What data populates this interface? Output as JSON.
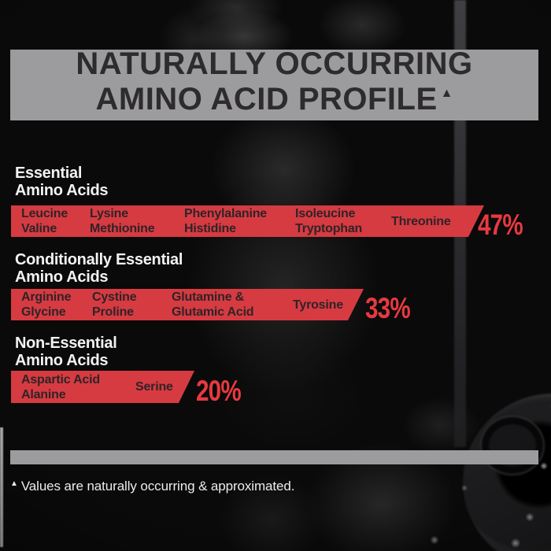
{
  "header": {
    "line1": "NATURALLY OCCURRING",
    "line2": "AMINO ACID PROFILE",
    "footnote_marker": "▲"
  },
  "sections": [
    {
      "label_line1": "Essential",
      "label_line2": "Amino Acids",
      "percent": "47%",
      "columns": [
        [
          "Leucine",
          "Valine"
        ],
        [
          "Lysine",
          "Methionine"
        ],
        [
          "Phenylalanine",
          "Histidine"
        ],
        [
          "Isoleucine",
          "Tryptophan"
        ],
        [
          "Threonine"
        ]
      ]
    },
    {
      "label_line1": "Conditionally Essential",
      "label_line2": "Amino Acids",
      "percent": "33%",
      "columns": [
        [
          "Arginine",
          "Glycine"
        ],
        [
          "Cystine",
          "Proline"
        ],
        [
          "Glutamine &",
          "Glutamic Acid"
        ],
        [
          "Tyrosine"
        ]
      ]
    },
    {
      "label_line1": "Non-Essential",
      "label_line2": "Amino Acids",
      "percent": "20%",
      "columns": [
        [
          "Aspartic Acid",
          "Alanine"
        ],
        [
          "Serine"
        ]
      ]
    }
  ],
  "footnote": {
    "marker": "▲",
    "text": "Values are naturally occurring & approximated."
  },
  "colors": {
    "bar_red": "#d63b41",
    "percent_red": "#e8393f",
    "banner_gray": "#9c9b9d",
    "header_text": "#2d2b2e",
    "bar_text": "#2f2328",
    "white_text": "#ececec",
    "background": "#0a0a0a"
  },
  "chart_data": {
    "type": "bar",
    "orientation": "horizontal",
    "title": "Naturally Occurring Amino Acid Profile",
    "categories": [
      "Essential Amino Acids",
      "Conditionally Essential Amino Acids",
      "Non-Essential Amino Acids"
    ],
    "values": [
      47,
      33,
      20
    ],
    "unit": "%",
    "xlim": [
      0,
      100
    ],
    "legend": "none",
    "grid": false,
    "items_per_category": {
      "Essential Amino Acids": [
        "Leucine",
        "Valine",
        "Lysine",
        "Methionine",
        "Phenylalanine",
        "Histidine",
        "Isoleucine",
        "Tryptophan",
        "Threonine"
      ],
      "Conditionally Essential Amino Acids": [
        "Arginine",
        "Glycine",
        "Cystine",
        "Proline",
        "Glutamine & Glutamic Acid",
        "Tyrosine"
      ],
      "Non-Essential Amino Acids": [
        "Aspartic Acid",
        "Alanine",
        "Serine"
      ]
    },
    "note": "Values are naturally occurring & approximated."
  }
}
